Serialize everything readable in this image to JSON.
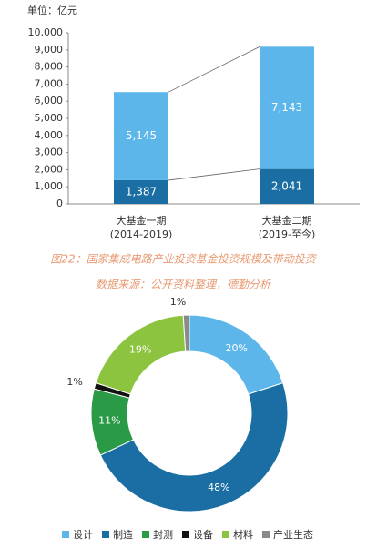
{
  "chart_data": [
    {
      "type": "stacked-bar",
      "unit_label": "单位：亿元",
      "categories": [
        [
          "大基金一期",
          "(2014-2019)"
        ],
        [
          "大基金二期",
          "(2019-至今)"
        ]
      ],
      "series": [
        {
          "color": "#1a6ea3",
          "values": [
            1387,
            2041
          ],
          "value_labels": [
            "1,387",
            "2,041"
          ]
        },
        {
          "color": "#5db6ea",
          "values": [
            5145,
            7143
          ],
          "value_labels": [
            "5,145",
            "7,143"
          ]
        }
      ],
      "ylim": [
        0,
        10000
      ],
      "yticks": [
        0,
        {
          "value": 1000,
          "label": "1,000"
        },
        {
          "value": 2000,
          "label": "2,000"
        },
        {
          "value": 3000,
          "label": "3,000"
        },
        {
          "value": 4000,
          "label": "4,000"
        },
        {
          "value": 5000,
          "label": "5,000"
        },
        {
          "value": 6000,
          "label": "6,000"
        },
        {
          "value": 7000,
          "label": "7,000"
        },
        {
          "value": 8000,
          "label": "8,000"
        },
        {
          "value": 9000,
          "label": "9,000"
        },
        {
          "value": 10000,
          "label": "10,000"
        }
      ],
      "caption": "图22：国家集成电路产业投资基金投资规模及带动投资",
      "source": "数据来源：公开资料整理，德勤分析"
    },
    {
      "type": "donut",
      "categories": [
        "设计",
        "制造",
        "封测",
        "设备",
        "材料",
        "产业生态"
      ],
      "values": [
        20,
        48,
        11,
        1,
        19,
        1
      ],
      "value_labels": [
        "20%",
        "48%",
        "11%",
        "1%",
        "19%",
        "1%"
      ],
      "colors": [
        "#5db6ea",
        "#1a6ea3",
        "#2a9a47",
        "#111111",
        "#8dc43f",
        "#8a8a8a"
      ]
    }
  ]
}
